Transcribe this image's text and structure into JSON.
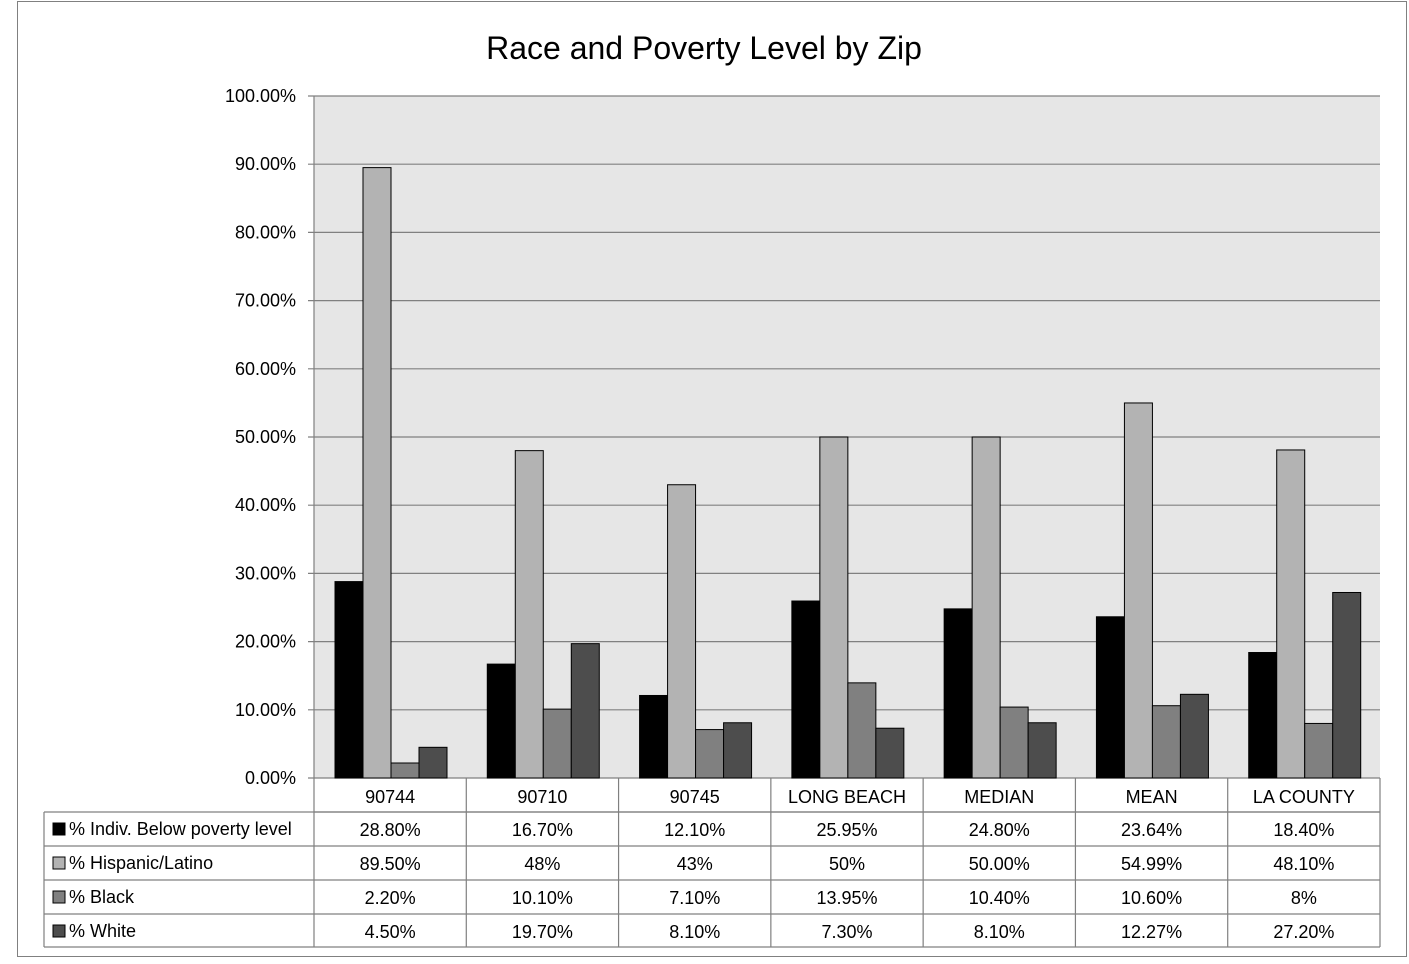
{
  "chart_data": {
    "type": "bar",
    "title": "Race and Poverty Level by Zip",
    "xlabel": "",
    "ylabel": "",
    "ylim": [
      0,
      100
    ],
    "yticks": [
      0,
      10,
      20,
      30,
      40,
      50,
      60,
      70,
      80,
      90,
      100
    ],
    "ytick_labels": [
      "0.00%",
      "10.00%",
      "20.00%",
      "30.00%",
      "40.00%",
      "50.00%",
      "60.00%",
      "70.00%",
      "80.00%",
      "90.00%",
      "100.00%"
    ],
    "grid": true,
    "legend_placement": "data-table-left",
    "categories": [
      "90744",
      "90710",
      "90745",
      "LONG BEACH",
      "MEDIAN",
      "MEAN",
      "LA COUNTY"
    ],
    "series": [
      {
        "name": "% Indiv. Below poverty level",
        "color": "#000000",
        "values": [
          28.8,
          16.7,
          12.1,
          25.95,
          24.8,
          23.64,
          18.4
        ],
        "labels": [
          "28.80%",
          "16.70%",
          "12.10%",
          "25.95%",
          "24.80%",
          "23.64%",
          "18.40%"
        ]
      },
      {
        "name": "% Hispanic/Latino",
        "color": "#b3b3b3",
        "values": [
          89.5,
          48,
          43,
          50,
          50,
          54.99,
          48.1
        ],
        "labels": [
          "89.50%",
          "48%",
          "43%",
          "50%",
          "50.00%",
          "54.99%",
          "48.10%"
        ]
      },
      {
        "name": "% Black",
        "color": "#808080",
        "values": [
          2.2,
          10.1,
          7.1,
          13.95,
          10.4,
          10.6,
          8
        ],
        "labels": [
          "2.20%",
          "10.10%",
          "7.10%",
          "13.95%",
          "10.40%",
          "10.60%",
          "8%"
        ]
      },
      {
        "name": "% White",
        "color": "#4d4d4d",
        "values": [
          4.5,
          19.7,
          8.1,
          7.3,
          8.1,
          12.27,
          27.2
        ],
        "labels": [
          "4.50%",
          "19.70%",
          "8.10%",
          "7.30%",
          "8.10%",
          "12.27%",
          "27.20%"
        ]
      }
    ]
  }
}
